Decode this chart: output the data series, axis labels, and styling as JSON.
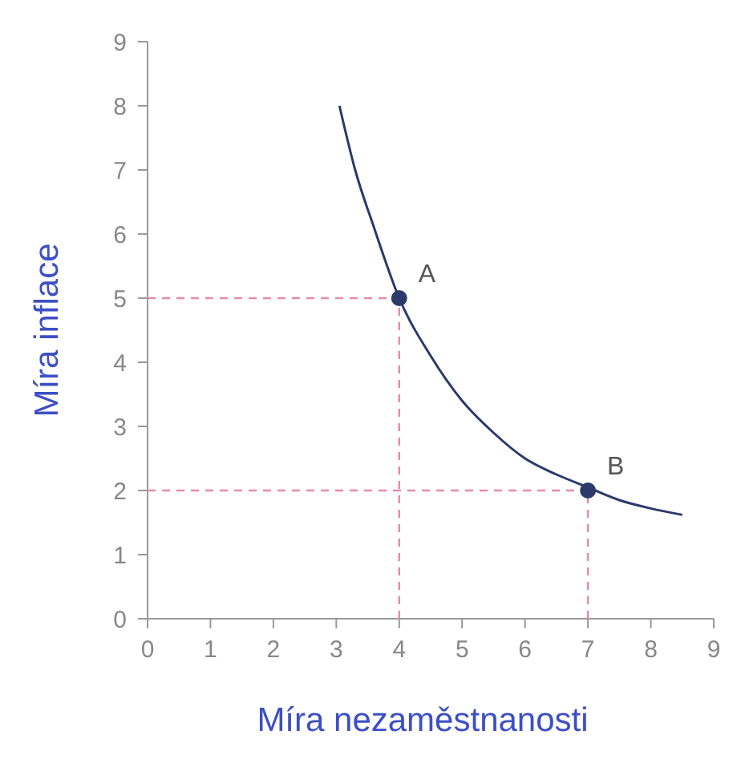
{
  "chart_data": {
    "type": "line",
    "xlabel": "Míra nezaměstnanosti",
    "ylabel": "Míra inflace",
    "xlim": [
      0,
      9
    ],
    "ylim": [
      0,
      9
    ],
    "xticks": [
      0,
      1,
      2,
      3,
      4,
      5,
      6,
      7,
      8,
      9
    ],
    "yticks": [
      0,
      1,
      2,
      3,
      4,
      5,
      6,
      7,
      8,
      9
    ],
    "grid": false,
    "series": [
      {
        "color": "#e88aa8",
        "line_style": "dashed",
        "marker": "none",
        "x": [
          0,
          4
        ],
        "values": [
          5,
          5
        ]
      },
      {
        "color": "#e88aa8",
        "line_style": "dashed",
        "marker": "none",
        "x": [
          4,
          4
        ],
        "values": [
          0,
          5
        ]
      },
      {
        "color": "#e88aa8",
        "line_style": "dashed",
        "marker": "none",
        "x": [
          0,
          7
        ],
        "values": [
          2,
          2
        ]
      },
      {
        "color": "#e88aa8",
        "line_style": "dashed",
        "marker": "none",
        "x": [
          7,
          7
        ],
        "values": [
          0,
          2
        ]
      },
      {
        "color": "#2b3a6b",
        "line_style": "solid",
        "marker": "none",
        "x": [
          3.05,
          3.3,
          3.6,
          4,
          4.5,
          5,
          5.5,
          6,
          6.5,
          7,
          7.5,
          8,
          8.5
        ],
        "values": [
          8,
          7,
          6.1,
          5,
          4.1,
          3.4,
          2.9,
          2.5,
          2.25,
          2.05,
          1.85,
          1.72,
          1.62
        ]
      },
      {
        "type": "scatter",
        "color": "#2b3a6b",
        "marker": "circle",
        "x": [
          4,
          7
        ],
        "values": [
          5,
          2
        ]
      }
    ],
    "annotations": [
      {
        "text": "A",
        "x": 4,
        "y": 5
      },
      {
        "text": "B",
        "x": 7,
        "y": 2
      }
    ]
  }
}
